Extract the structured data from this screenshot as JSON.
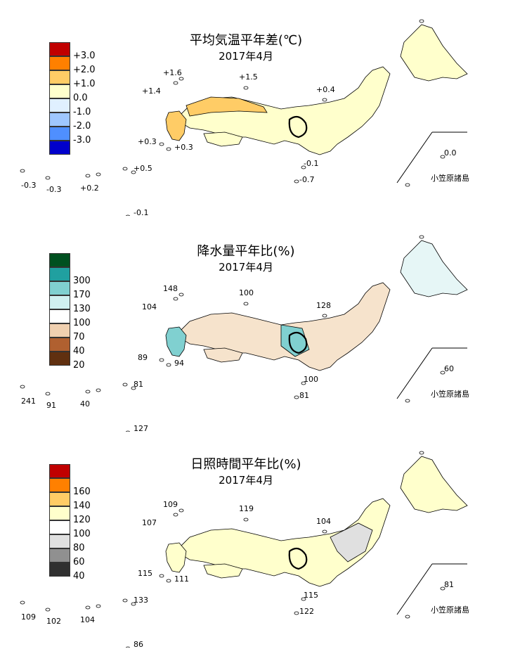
{
  "panels": [
    {
      "title": "平均気温平年差(℃)",
      "subtitle": "2017年4月",
      "legend": [
        {
          "label": "+3.0",
          "color": "#c00000"
        },
        {
          "label": "+2.0",
          "color": "#ff8000"
        },
        {
          "label": "+1.0",
          "color": "#ffcc66"
        },
        {
          "label": "0.0",
          "color": "#ffffcc"
        },
        {
          "label": "-1.0",
          "color": "#e0f0ff"
        },
        {
          "label": "-2.0",
          "color": "#9fc7ff"
        },
        {
          "label": "-3.0",
          "color": "#4f8fff"
        },
        {
          "label": "",
          "color": "#0000cc"
        }
      ],
      "labels": {
        "oki": "+1.6",
        "sado": "+1.5",
        "kyushu_north": "+1.4",
        "hachijo": "+0.4",
        "yakushima": "+0.3",
        "amami": "+0.3",
        "okinawa": "+0.5",
        "miyako": "-0.3",
        "yaeyama": "-0.3",
        "naha": "+0.2",
        "daito": "-0.1",
        "minamidaito": "-0.1",
        "ogasawara": "0.0",
        "chichijima": "-0.7"
      },
      "ogasawara_name": "小笠原諸島"
    },
    {
      "title": "降水量平年比(%)",
      "subtitle": "2017年4月",
      "legend": [
        {
          "label": "",
          "color": "#005020"
        },
        {
          "label": "300",
          "color": "#20a0a0"
        },
        {
          "label": "170",
          "color": "#80d0d0"
        },
        {
          "label": "130",
          "color": "#d0f0f0"
        },
        {
          "label": "100",
          "color": "#ffffff"
        },
        {
          "label": "70",
          "color": "#f0d0b0"
        },
        {
          "label": "40",
          "color": "#b06030"
        },
        {
          "label": "20",
          "color": "#603010"
        }
      ],
      "labels": {
        "oki": "148",
        "sado": "100",
        "kyushu_north": "104",
        "hachijo": "128",
        "yakushima": "89",
        "amami": "94",
        "okinawa": "81",
        "miyako": "241",
        "yaeyama": "91",
        "naha": "40",
        "daito": "127",
        "minamidaito": "100",
        "ogasawara": "60",
        "chichijima": "81"
      },
      "ogasawara_name": "小笠原諸島"
    },
    {
      "title": "日照時間平年比(%)",
      "subtitle": "2017年4月",
      "legend": [
        {
          "label": "",
          "color": "#c00000"
        },
        {
          "label": "160",
          "color": "#ff8000"
        },
        {
          "label": "140",
          "color": "#ffcc66"
        },
        {
          "label": "120",
          "color": "#ffffcc"
        },
        {
          "label": "100",
          "color": "#ffffff"
        },
        {
          "label": "80",
          "color": "#e0e0e0"
        },
        {
          "label": "60",
          "color": "#909090"
        },
        {
          "label": "40",
          "color": "#303030"
        }
      ],
      "labels": {
        "oki": "109",
        "sado": "119",
        "kyushu_north": "107",
        "hachijo": "104",
        "yakushima": "115",
        "amami": "111",
        "okinawa": "133",
        "miyako": "109",
        "yaeyama": "102",
        "naha": "104",
        "daito": "86",
        "minamidaito": "115",
        "ogasawara": "81",
        "chichijima": "122"
      },
      "ogasawara_name": "小笠原諸島"
    }
  ]
}
